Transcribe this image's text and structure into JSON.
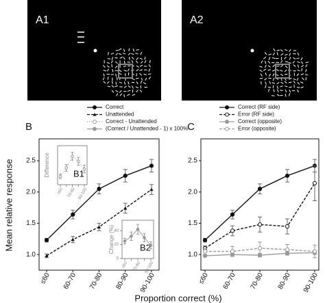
{
  "images": [
    {
      "label": "A1"
    },
    {
      "label": "A2"
    }
  ],
  "xlabel": "Proportion correct (%)",
  "ylabel": "Mean relative response",
  "chart_data": [
    {
      "type": "line",
      "panel": "B",
      "categories": [
        "≤60",
        "60-70",
        "70-80",
        "80-90",
        "90-100"
      ],
      "ylim": [
        0.75,
        2.85
      ],
      "yticks": [
        {
          "value": 1,
          "label": "1.0"
        },
        1.5,
        {
          "value": 2,
          "label": "2.0"
        },
        2.5
      ],
      "series": [
        {
          "name": "Correct",
          "color": "#111111",
          "dash": "solid",
          "marker": "circle",
          "values": [
            1.23,
            1.64,
            2.05,
            2.26,
            2.42
          ],
          "errors": [
            0.03,
            0.07,
            0.08,
            0.1,
            0.1
          ]
        },
        {
          "name": "Unattended",
          "color": "#111111",
          "dash": "dashed",
          "marker": "triangle",
          "values": [
            0.98,
            1.24,
            1.44,
            1.74,
            2.04
          ],
          "errors": [
            0.03,
            0.05,
            0.06,
            0.08,
            0.08
          ]
        }
      ]
    },
    {
      "type": "line",
      "panel": "B1",
      "ylabel": "Difference",
      "categories": [
        "≤60",
        null,
        "70-80",
        null,
        "90-100"
      ],
      "ylim": [
        0.1,
        0.8
      ],
      "series": [
        {
          "name": "Correct - Unattended",
          "color": "#999999",
          "dash": "dotted",
          "marker": "open-circle",
          "values": [
            0.25,
            0.4,
            0.61,
            0.52,
            0.38
          ],
          "errors": [
            0.04,
            0.06,
            0.07,
            0.07,
            0.07
          ]
        }
      ]
    },
    {
      "type": "line",
      "panel": "B2",
      "ylabel": "Change (%)",
      "categories": [
        "≤60",
        null,
        "70-80",
        null,
        "90-100"
      ],
      "ylim": [
        0,
        55
      ],
      "yticks": [
        0,
        20,
        40
      ],
      "series": [
        {
          "name": "(Correct / Unattended - 1) x 100%",
          "color": "#999999",
          "dash": "solid",
          "marker": "circle",
          "values": [
            25,
            32,
            42,
            30,
            19
          ],
          "errors": [
            4,
            6,
            7,
            6,
            5
          ]
        }
      ]
    },
    {
      "type": "line",
      "panel": "C",
      "categories": [
        "≤60",
        "60-70",
        "70-80",
        "80-90",
        "90-100"
      ],
      "ylim": [
        0.75,
        2.85
      ],
      "yticks": [
        {
          "value": 1,
          "label": "1.0"
        },
        1.5,
        {
          "value": 2,
          "label": "2.0"
        },
        2.5
      ],
      "series": [
        {
          "name": "Correct (RF side)",
          "color": "#111111",
          "dash": "solid",
          "marker": "circle",
          "values": [
            1.23,
            1.64,
            2.05,
            2.26,
            2.42
          ],
          "errors": [
            0.03,
            0.07,
            0.08,
            0.1,
            0.1
          ]
        },
        {
          "name": "Error (RF side)",
          "color": "#111111",
          "dash": "dashed",
          "marker": "open-circle",
          "values": [
            1.1,
            1.38,
            1.48,
            1.45,
            2.14
          ],
          "errors": [
            0.04,
            0.08,
            0.12,
            0.12,
            0.28
          ]
        },
        {
          "name": "Correct (opposite)",
          "color": "#999999",
          "dash": "solid",
          "marker": "circle",
          "values": [
            0.98,
            1.0,
            0.99,
            1.02,
            1.03
          ],
          "errors": [
            0.02,
            0.03,
            0.03,
            0.03,
            0.03
          ]
        },
        {
          "name": "Error (opposite)",
          "color": "#999999",
          "dash": "dashed",
          "marker": "open-circle",
          "values": [
            1.05,
            1.05,
            1.1,
            1.08,
            1.05
          ],
          "errors": [
            0.05,
            0.08,
            0.1,
            0.08,
            0.1
          ]
        }
      ]
    }
  ]
}
